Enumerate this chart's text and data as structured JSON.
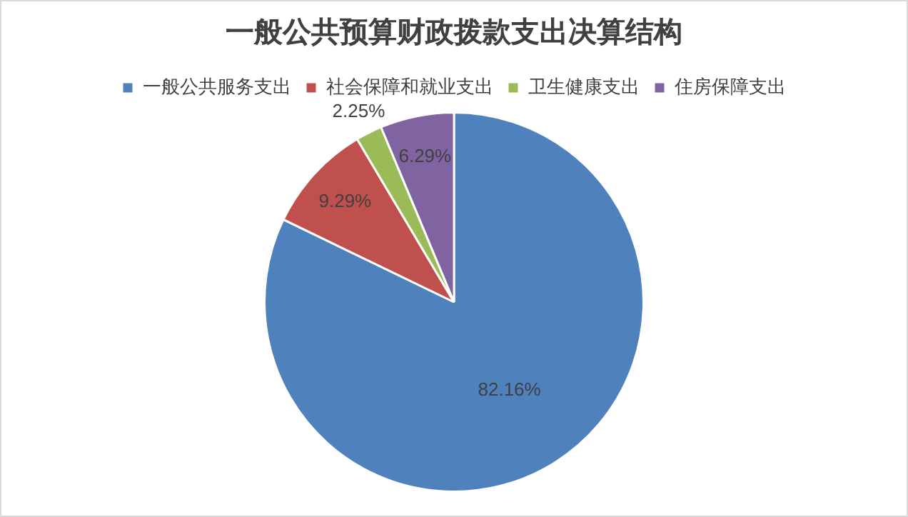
{
  "chart_data": {
    "type": "pie",
    "title": "一般公共预算财政拨款支出决算结构",
    "categories": [
      "一般公共服务支出",
      "社会保障和就业支出",
      "卫生健康支出",
      "住房保障支出"
    ],
    "values": [
      82.16,
      9.29,
      2.25,
      6.29
    ],
    "colors": [
      "#4f81bd",
      "#c0504d",
      "#9bbb59",
      "#8064a2"
    ],
    "value_labels": [
      "82.16%",
      "9.29%",
      "2.25%",
      "6.29%"
    ],
    "legend": "top"
  }
}
